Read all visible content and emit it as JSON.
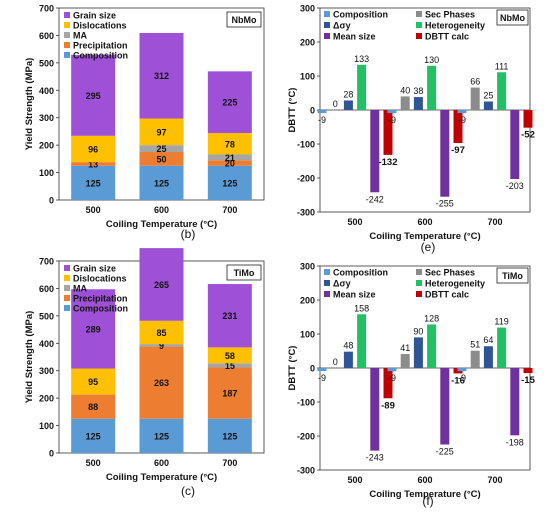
{
  "colors": {
    "Composition": "#5b9bd5",
    "Precipitation": "#ed7d31",
    "MA": "#a5a5a5",
    "Dislocations": "#ffc000",
    "Grain size": "#9e51d6",
    "Sec Phases": "#8c8c8c",
    "Δσy": "#2f5597",
    "Heterogeneity": "#21c065",
    "Mean size": "#7030a0",
    "DBTT calc": "#c00000"
  },
  "chart_data": [
    {
      "id": "b",
      "panel_label": "(b)",
      "type": "bar",
      "stacked": true,
      "badge": "NbMo",
      "xlabel": "Coiling Temperature (°C)",
      "ylabel": "Yield Strength (MPa)",
      "ylim": [
        0,
        700
      ],
      "yticks": [
        0,
        100,
        200,
        300,
        400,
        500,
        600,
        700
      ],
      "grid": false,
      "legend": "top-left",
      "categories": [
        "500",
        "600",
        "700"
      ],
      "series": [
        {
          "name": "Composition",
          "values": [
            125,
            125,
            125
          ],
          "labels": [
            "125",
            "125",
            "125"
          ]
        },
        {
          "name": "Precipitation",
          "values": [
            13,
            50,
            20
          ],
          "labels": [
            "13",
            "50",
            "20"
          ]
        },
        {
          "name": "MA",
          "values": [
            0,
            25,
            21
          ],
          "labels": [
            "",
            "25",
            "21"
          ]
        },
        {
          "name": "Dislocations",
          "values": [
            96,
            97,
            78
          ],
          "labels": [
            "96",
            "97",
            "78"
          ]
        },
        {
          "name": "Grain size",
          "values": [
            295,
            312,
            225
          ],
          "labels": [
            "295",
            "312",
            "225"
          ]
        }
      ]
    },
    {
      "id": "c",
      "panel_label": "(c)",
      "type": "bar",
      "stacked": true,
      "badge": "TiMo",
      "xlabel": "Coiling Temperature (°C)",
      "ylabel": "Yield Strength (MPa)",
      "ylim": [
        0,
        700
      ],
      "yticks": [
        0,
        100,
        200,
        300,
        400,
        500,
        600,
        700
      ],
      "grid": false,
      "legend": "top-left",
      "categories": [
        "500",
        "600",
        "700"
      ],
      "series": [
        {
          "name": "Composition",
          "values": [
            125,
            125,
            125
          ],
          "labels": [
            "125",
            "125",
            "125"
          ]
        },
        {
          "name": "Precipitation",
          "values": [
            88,
            263,
            187
          ],
          "labels": [
            "88",
            "263",
            "187"
          ]
        },
        {
          "name": "MA",
          "values": [
            0,
            9,
            15
          ],
          "labels": [
            "",
            "9",
            "15"
          ]
        },
        {
          "name": "Dislocations",
          "values": [
            95,
            85,
            58
          ],
          "labels": [
            "95",
            "85",
            "58"
          ]
        },
        {
          "name": "Grain size",
          "values": [
            289,
            265,
            231
          ],
          "labels": [
            "289",
            "265",
            "231"
          ]
        }
      ]
    },
    {
      "id": "e",
      "panel_label": "(e)",
      "type": "bar",
      "stacked": false,
      "badge": "NbMo",
      "xlabel": "Coiling Temperature (°C)",
      "ylabel": "DBTT (°C)",
      "ylim": [
        -300,
        300
      ],
      "yticks": [
        -300,
        -200,
        -100,
        0,
        100,
        200,
        300
      ],
      "grid": false,
      "legend": "top-left",
      "categories": [
        "500",
        "600",
        "700"
      ],
      "series": [
        {
          "name": "Composition",
          "values": [
            -9,
            -9,
            -9
          ]
        },
        {
          "name": "Sec Phases",
          "values": [
            0,
            40,
            66
          ]
        },
        {
          "name": "Δσy",
          "values": [
            28,
            38,
            25
          ]
        },
        {
          "name": "Heterogeneity",
          "values": [
            133,
            130,
            111
          ]
        },
        {
          "name": "Mean size",
          "values": [
            -242,
            -255,
            -203
          ]
        },
        {
          "name": "DBTT calc",
          "values": [
            -132,
            -97,
            -52
          ]
        }
      ]
    },
    {
      "id": "f",
      "panel_label": "(f)",
      "type": "bar",
      "stacked": false,
      "badge": "TiMo",
      "xlabel": "Coiling Temperature (°C)",
      "ylabel": "DBTT (°C)",
      "ylim": [
        -300,
        300
      ],
      "yticks": [
        -300,
        -200,
        -100,
        0,
        100,
        200,
        300
      ],
      "grid": false,
      "legend": "top-left",
      "categories": [
        "500",
        "600",
        "700"
      ],
      "series": [
        {
          "name": "Composition",
          "values": [
            -9,
            -9,
            -9
          ]
        },
        {
          "name": "Sec Phases",
          "values": [
            0,
            41,
            51
          ]
        },
        {
          "name": "Δσy",
          "values": [
            48,
            90,
            64
          ]
        },
        {
          "name": "Heterogeneity",
          "values": [
            158,
            128,
            119
          ]
        },
        {
          "name": "Mean size",
          "values": [
            -243,
            -225,
            -198
          ]
        },
        {
          "name": "DBTT calc",
          "values": [
            -89,
            -16,
            -15
          ]
        }
      ]
    }
  ]
}
